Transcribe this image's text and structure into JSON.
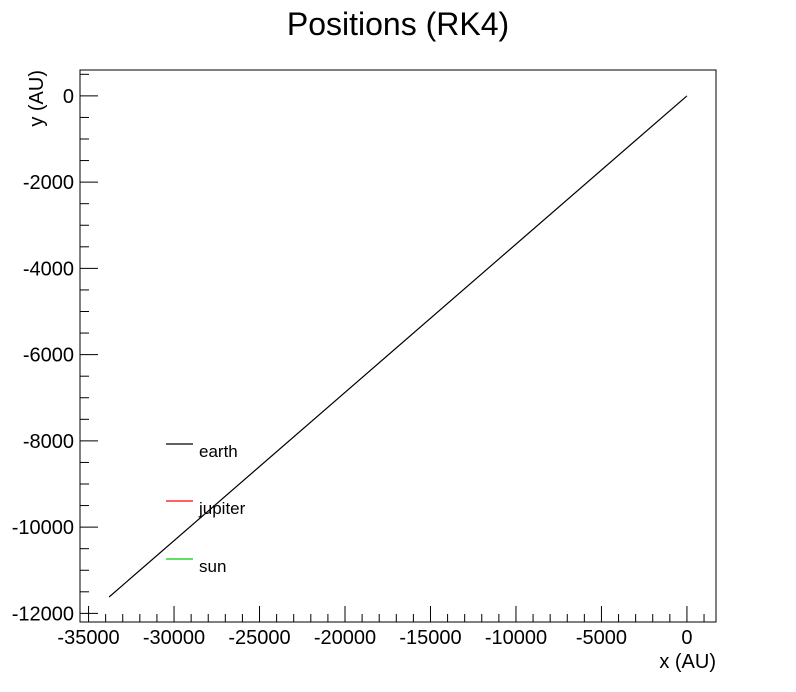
{
  "chart_data": {
    "type": "line",
    "title": "Positions (RK4)",
    "xlabel": "x (AU)",
    "ylabel": "y (AU)",
    "xlim": [
      -35500,
      1700
    ],
    "ylim": [
      -12200,
      600
    ],
    "xticks": [
      -35000,
      -30000,
      -25000,
      -20000,
      -15000,
      -10000,
      -5000,
      0
    ],
    "xtick_labels": [
      "-35000",
      "-30000",
      "-25000",
      "-20000",
      "-15000",
      "-10000",
      "-5000",
      "0"
    ],
    "yticks": [
      -12000,
      -10000,
      -8000,
      -6000,
      -4000,
      -2000,
      0
    ],
    "ytick_labels": [
      "-12000",
      "-10000",
      "-8000",
      "-6000",
      "-4000",
      "-2000",
      "0"
    ],
    "x_minor_step": 1000,
    "y_minor_step": 500,
    "grid": false,
    "legend_position": "left-lower",
    "series": [
      {
        "name": "earth",
        "color": "#000000",
        "x": [
          0,
          -33800
        ],
        "y": [
          0,
          -11620
        ]
      },
      {
        "name": "jupiter",
        "color": "#ff0000",
        "x": [
          0,
          -30
        ],
        "y": [
          0,
          -10
        ]
      },
      {
        "name": "sun",
        "color": "#00cc00",
        "x": [
          0,
          -20
        ],
        "y": [
          0,
          -10
        ]
      }
    ]
  }
}
